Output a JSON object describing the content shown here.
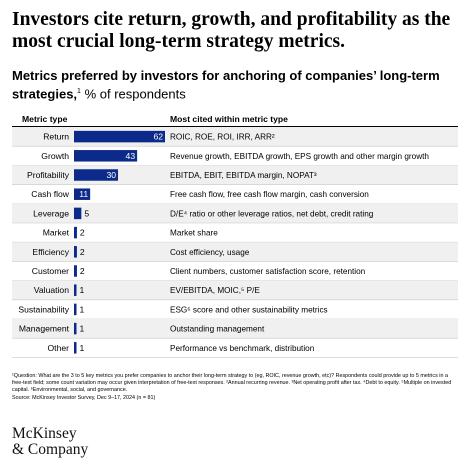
{
  "headline": "Investors cite return, growth, and profitability as the most crucial long-term strategy metrics.",
  "subtitle": {
    "text": "Metrics preferred by investors for anchoring of companies’ long-term strategies,",
    "footnote_mark": "1",
    "unit": " % of respondents"
  },
  "columns": {
    "metric_type": "Metric type",
    "most_cited": "Most cited within metric type"
  },
  "chart_data": {
    "type": "bar",
    "orientation": "horizontal",
    "categories": [
      "Return",
      "Growth",
      "Profitability",
      "Cash flow",
      "Leverage",
      "Market",
      "Efficiency",
      "Customer",
      "Valuation",
      "Sustainability",
      "Management",
      "Other"
    ],
    "values": [
      62,
      43,
      30,
      11,
      5,
      2,
      2,
      2,
      1,
      1,
      1,
      1
    ],
    "unit": "% of respondents",
    "descriptions": [
      "ROIC, ROE, ROI, IRR, ARR²",
      "Revenue growth, EBITDA growth, EPS growth and other margin growth",
      "EBITDA, EBIT, EBITDA margin, NOPAT³",
      "Free cash flow, free cash flow margin, cash conversion",
      "D/E⁴ ratio or other leverage ratios, net debt, credit rating",
      "Market share",
      "Cost efficiency, usage",
      "Client numbers, customer satisfaction score, retention",
      "EV/EBITDA, MOIC,⁵ P/E",
      "ESG⁶ score and other sustainability metrics",
      "Outstanding management",
      "Performance vs benchmark, distribution"
    ],
    "xlim": [
      0,
      62
    ],
    "grid": false,
    "legend": "none",
    "bar_color": "#0b2a8a",
    "label_color_inside": "#ffffff",
    "label_color_outside": "#000000",
    "row_shading": "#f0f0f0",
    "rule_color": "#c8c8c8"
  },
  "footnotes": {
    "question": "¹Question: What are the 3 to 5 key metrics you prefer companies to anchor their long-term strategy to (eg, ROIC, revenue growth, etc)? Respondents could provide up to 5 metrics in a free-text field; some count variation may occur given interpretation of free-text responses. ²Annual recurring revenue. ³Net operating profit after tax. ⁴Debt to equity. ⁵Multiple on invested capital. ⁶Environmental, social, and governance.",
    "source": "Source: McKinsey Investor Survey, Dec 9–17, 2024 (n = 81)"
  },
  "logo": {
    "line1": "McKinsey",
    "line2": "& Company"
  }
}
